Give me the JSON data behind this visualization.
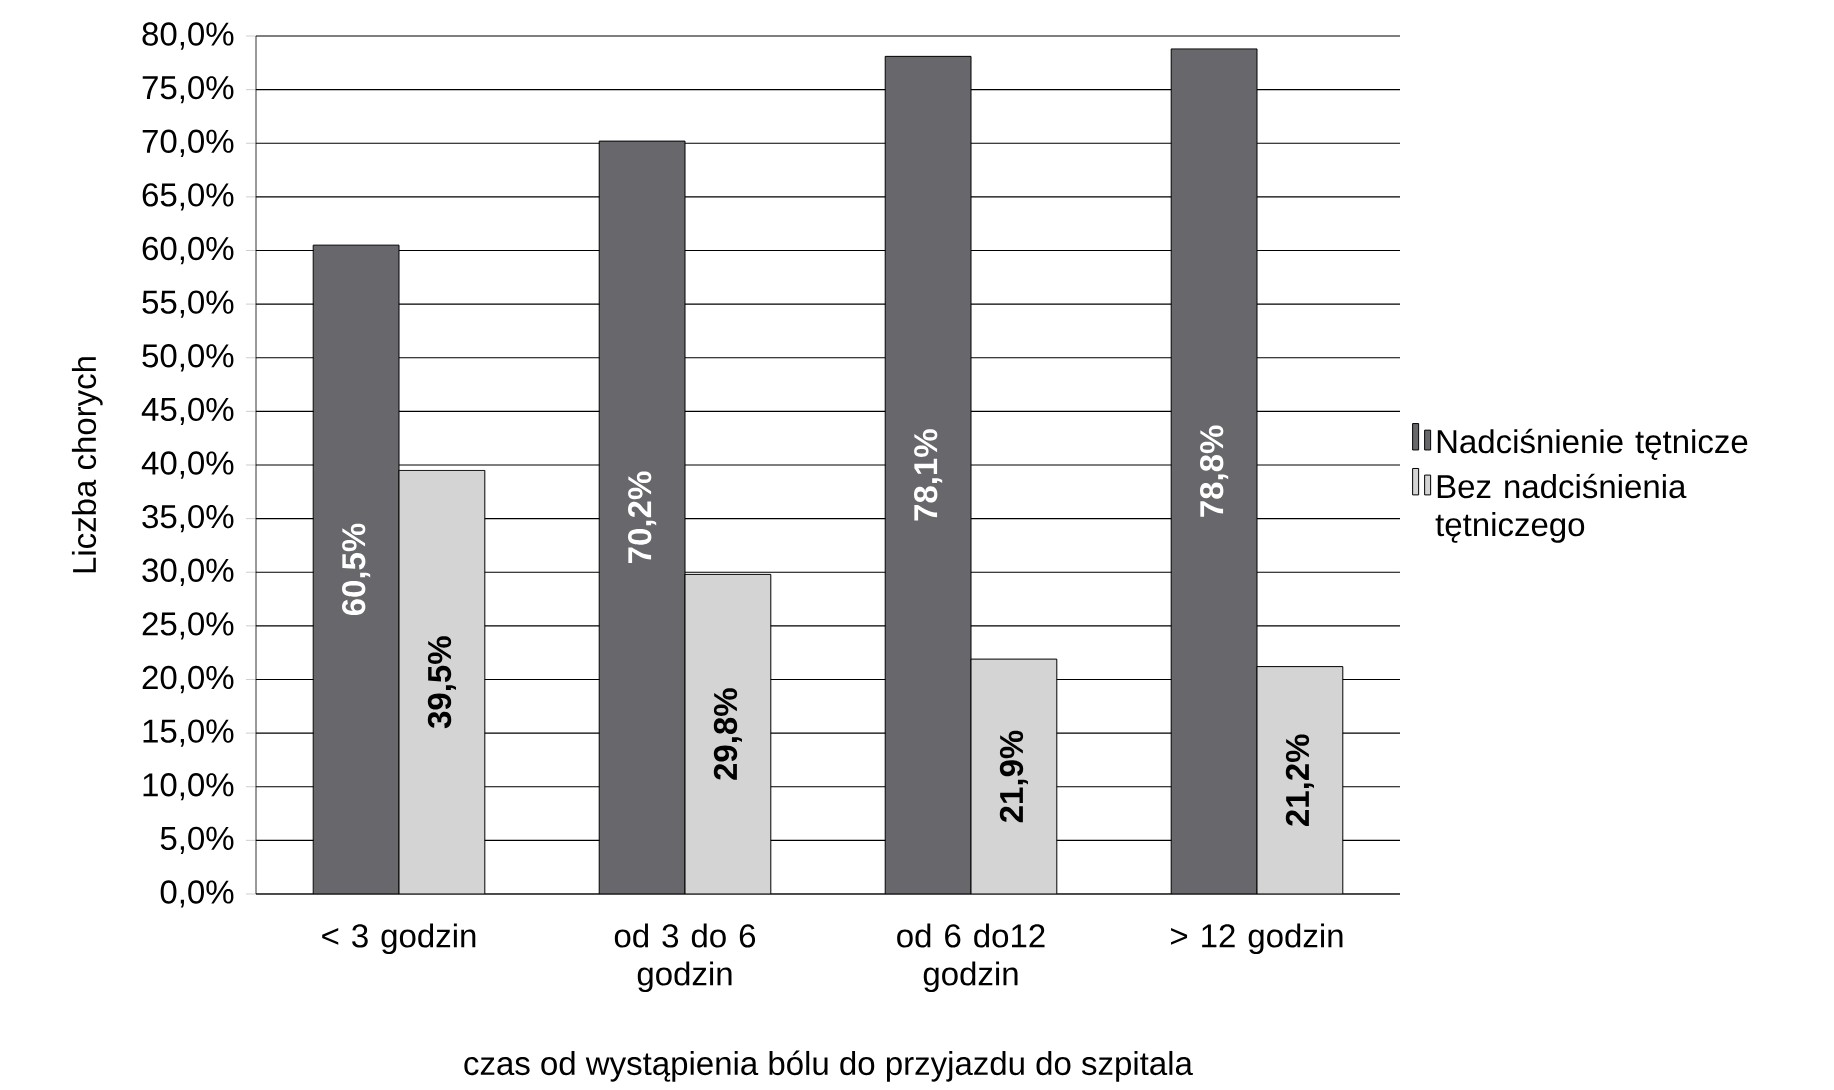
{
  "chart_data": {
    "type": "bar",
    "categories": [
      "< 3 godzin",
      "od 3 do 6 godzin",
      "od 6 do12 godzin",
      "> 12 godzin"
    ],
    "xlabel": "czas od wystąpienia bólu do przyjazdu do szpitala",
    "ylabel": "Liczba chorych",
    "ylim": [
      0,
      80
    ],
    "yticks": [
      {
        "value": 0,
        "label": "0,0%"
      },
      {
        "value": 5,
        "label": "5,0%"
      },
      {
        "value": 10,
        "label": "10,0%"
      },
      {
        "value": 15,
        "label": "15,0%"
      },
      {
        "value": 20,
        "label": "20,0%"
      },
      {
        "value": 25,
        "label": "25,0%"
      },
      {
        "value": 30,
        "label": "30,0%"
      },
      {
        "value": 35,
        "label": "35,0%"
      },
      {
        "value": 40,
        "label": "40,0%"
      },
      {
        "value": 45,
        "label": "45,0%"
      },
      {
        "value": 50,
        "label": "50,0%"
      },
      {
        "value": 55,
        "label": "55,0%"
      },
      {
        "value": 60,
        "label": "60,0%"
      },
      {
        "value": 65,
        "label": "65,0%"
      },
      {
        "value": 70,
        "label": "70,0%"
      },
      {
        "value": 75,
        "label": "75,0%"
      },
      {
        "value": 80,
        "label": "80,0%"
      }
    ],
    "grid": "y",
    "legend": "right",
    "series": [
      {
        "name": "Nadciśnienie tętnicze",
        "color": "#68686c",
        "values": [
          60.5,
          70.2,
          78.1,
          78.8
        ],
        "value_labels": [
          "60,5%",
          "70,2%",
          "78,1%",
          "78,8%"
        ]
      },
      {
        "name": "Bez nadciśnienia tętniczego",
        "color": "#d4d4d4",
        "values": [
          39.5,
          29.8,
          21.9,
          21.2
        ],
        "value_labels": [
          "39,5%",
          "29,8%",
          "21,9%",
          "21,2%"
        ]
      }
    ]
  }
}
